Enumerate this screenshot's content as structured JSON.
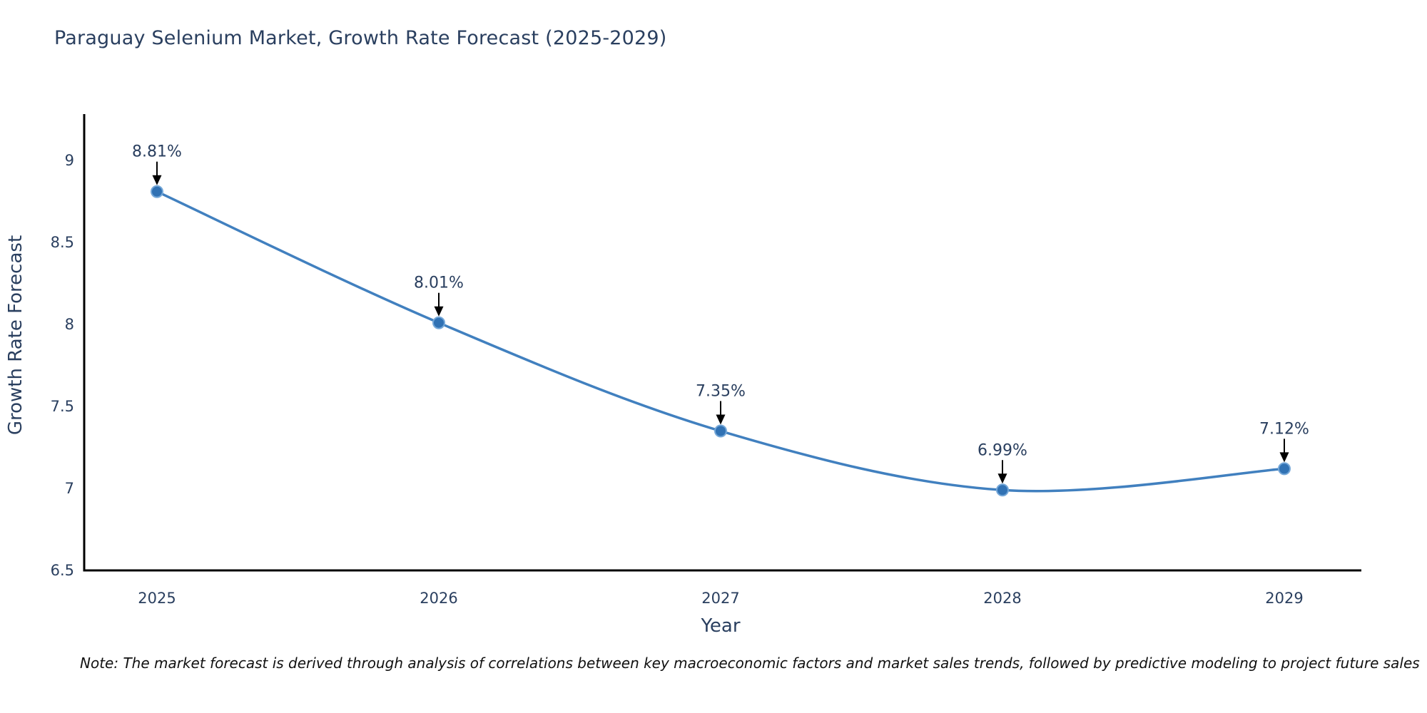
{
  "title": "Paraguay Selenium Market, Growth Rate Forecast (2025-2029)",
  "note": "Note: The market forecast is derived through analysis of correlations between key macroeconomic factors and market sales trends, followed by predictive modeling to project future sales",
  "chart_data": {
    "type": "line",
    "title": "Paraguay Selenium Market, Growth Rate Forecast (2025-2029)",
    "xlabel": "Year",
    "ylabel": "Growth Rate Forecast",
    "x": [
      2025,
      2026,
      2027,
      2028,
      2029
    ],
    "y": [
      8.81,
      8.01,
      7.35,
      6.99,
      7.12
    ],
    "point_labels": [
      "8.81%",
      "8.01%",
      "7.35%",
      "6.99%",
      "7.12%"
    ],
    "yticks": [
      "6.5",
      "7",
      "7.5",
      "8",
      "8.5",
      "9"
    ],
    "ytick_values": [
      6.5,
      7,
      7.5,
      8,
      8.5,
      9
    ],
    "ylim": [
      6.5,
      9.28
    ],
    "line_shape": "spline",
    "grid": false,
    "legend_position": "none",
    "annotation_arrows": true,
    "colors": {
      "line": "#4180bf",
      "marker_fill": "#3172b4",
      "marker_edge": "#74a7d8",
      "axis_line": "#000000",
      "tick_text": "#2a3f5f",
      "axis_title_text": "#2a3f5f",
      "title_text": "#2a3f5f",
      "annotation_text": "#2a3f5f",
      "arrow": "#000000",
      "note_text": "#111111",
      "background": "#ffffff"
    }
  }
}
